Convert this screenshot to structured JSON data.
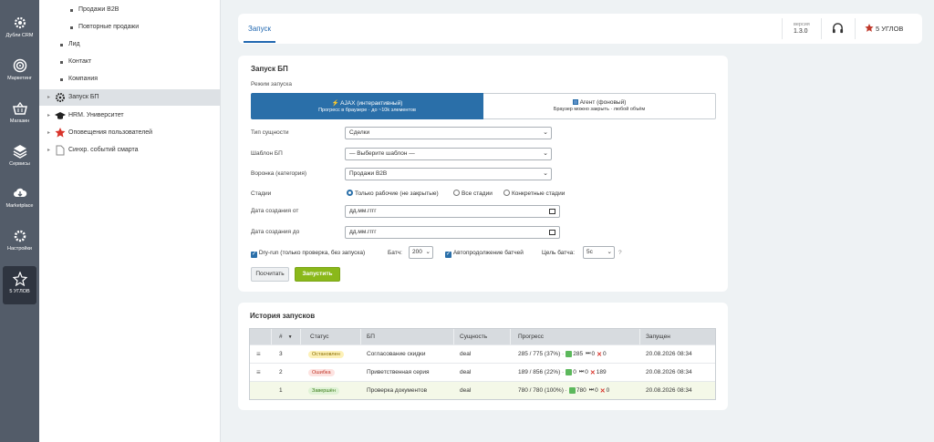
{
  "rail": [
    {
      "label": "Дубли CRM",
      "icon": "gear-icon"
    },
    {
      "label": "Маркетинг",
      "icon": "target-icon"
    },
    {
      "label": "Магазин",
      "icon": "basket-icon"
    },
    {
      "label": "Сервисы",
      "icon": "layers-icon"
    },
    {
      "label": "Marketplace",
      "icon": "cloud-download-icon"
    },
    {
      "label": "Настройки",
      "icon": "gear-icon"
    },
    {
      "label": "5 УГЛОВ",
      "icon": "star-icon"
    }
  ],
  "tree": [
    {
      "label": "Продажи B2B"
    },
    {
      "label": "Повторные продажи"
    },
    {
      "label": "Лид"
    },
    {
      "label": "Контакт"
    },
    {
      "label": "Компания"
    },
    {
      "label": "Запуск БП"
    },
    {
      "label": "HRM. Университет"
    },
    {
      "label": "Оповещения пользователей"
    },
    {
      "label": "Синхр. событий смарта"
    }
  ],
  "header": {
    "tab": "Запуск",
    "version_label": "версия",
    "version": "1.3.0",
    "brand": "5 УГЛОВ"
  },
  "form": {
    "title": "Запуск БП",
    "mode_label": "Режим запуска",
    "mode_ajax_title": "⚡ AJAX (интерактивный)",
    "mode_ajax_sub": "Прогресс в браузере · до ~10k элементов",
    "mode_agent_title": "Агент (фоновый)",
    "mode_agent_sub": "Браузер можно закрыть · любой объём",
    "entity_label": "Тип сущности",
    "entity_value": "Сделки",
    "template_label": "Шаблон БП",
    "template_value": "— Выберите шаблон —",
    "funnel_label": "Воронка (категория)",
    "funnel_value": "Продажи B2B",
    "stages_label": "Стадии",
    "stage_opt1": "Только рабочие (не закрытые)",
    "stage_opt2": "Все стадии",
    "stage_opt3": "Конкретные стадии",
    "date_from_label": "Дата создания от",
    "date_to_label": "Дата создания до",
    "date_placeholder": "дд.мм.гггг",
    "dryrun_label": "Dry-run (только проверка, без запуска)",
    "batch_label": "Батч:",
    "batch_value": "200",
    "autocontinue_label": "Автопродолжение батчей",
    "batch_target_label": "Цель батча:",
    "batch_target_value": "5с",
    "help": "?",
    "count_button": "Посчитать",
    "run_button": "Запустить"
  },
  "history": {
    "title": "История запусков",
    "columns": [
      "#",
      "Статус",
      "БП",
      "Сущность",
      "Прогресс",
      "Запущен"
    ],
    "rows": [
      {
        "num": "3",
        "status": "Остановлен",
        "status_color": "yellow",
        "bp": "Согласование скидки",
        "entity": "deal",
        "progress": "285 / 775 (37%) ·",
        "ok": "285",
        "skip": "0",
        "err": "0",
        "started": "20.08.2026 08:34"
      },
      {
        "num": "2",
        "status": "Ошибка",
        "status_color": "red",
        "bp": "Приветственная серия",
        "entity": "deal",
        "progress": "189 / 856 (22%) ·",
        "ok": "0",
        "skip": "0",
        "err": "189",
        "started": "20.08.2026 08:34"
      },
      {
        "num": "1",
        "status": "Завершён",
        "status_color": "green",
        "bp": "Проверка документов",
        "entity": "deal",
        "progress": "780 / 780 (100%) ·",
        "ok": "780",
        "skip": "0",
        "err": "0",
        "started": "20.08.2026 08:34"
      }
    ]
  }
}
